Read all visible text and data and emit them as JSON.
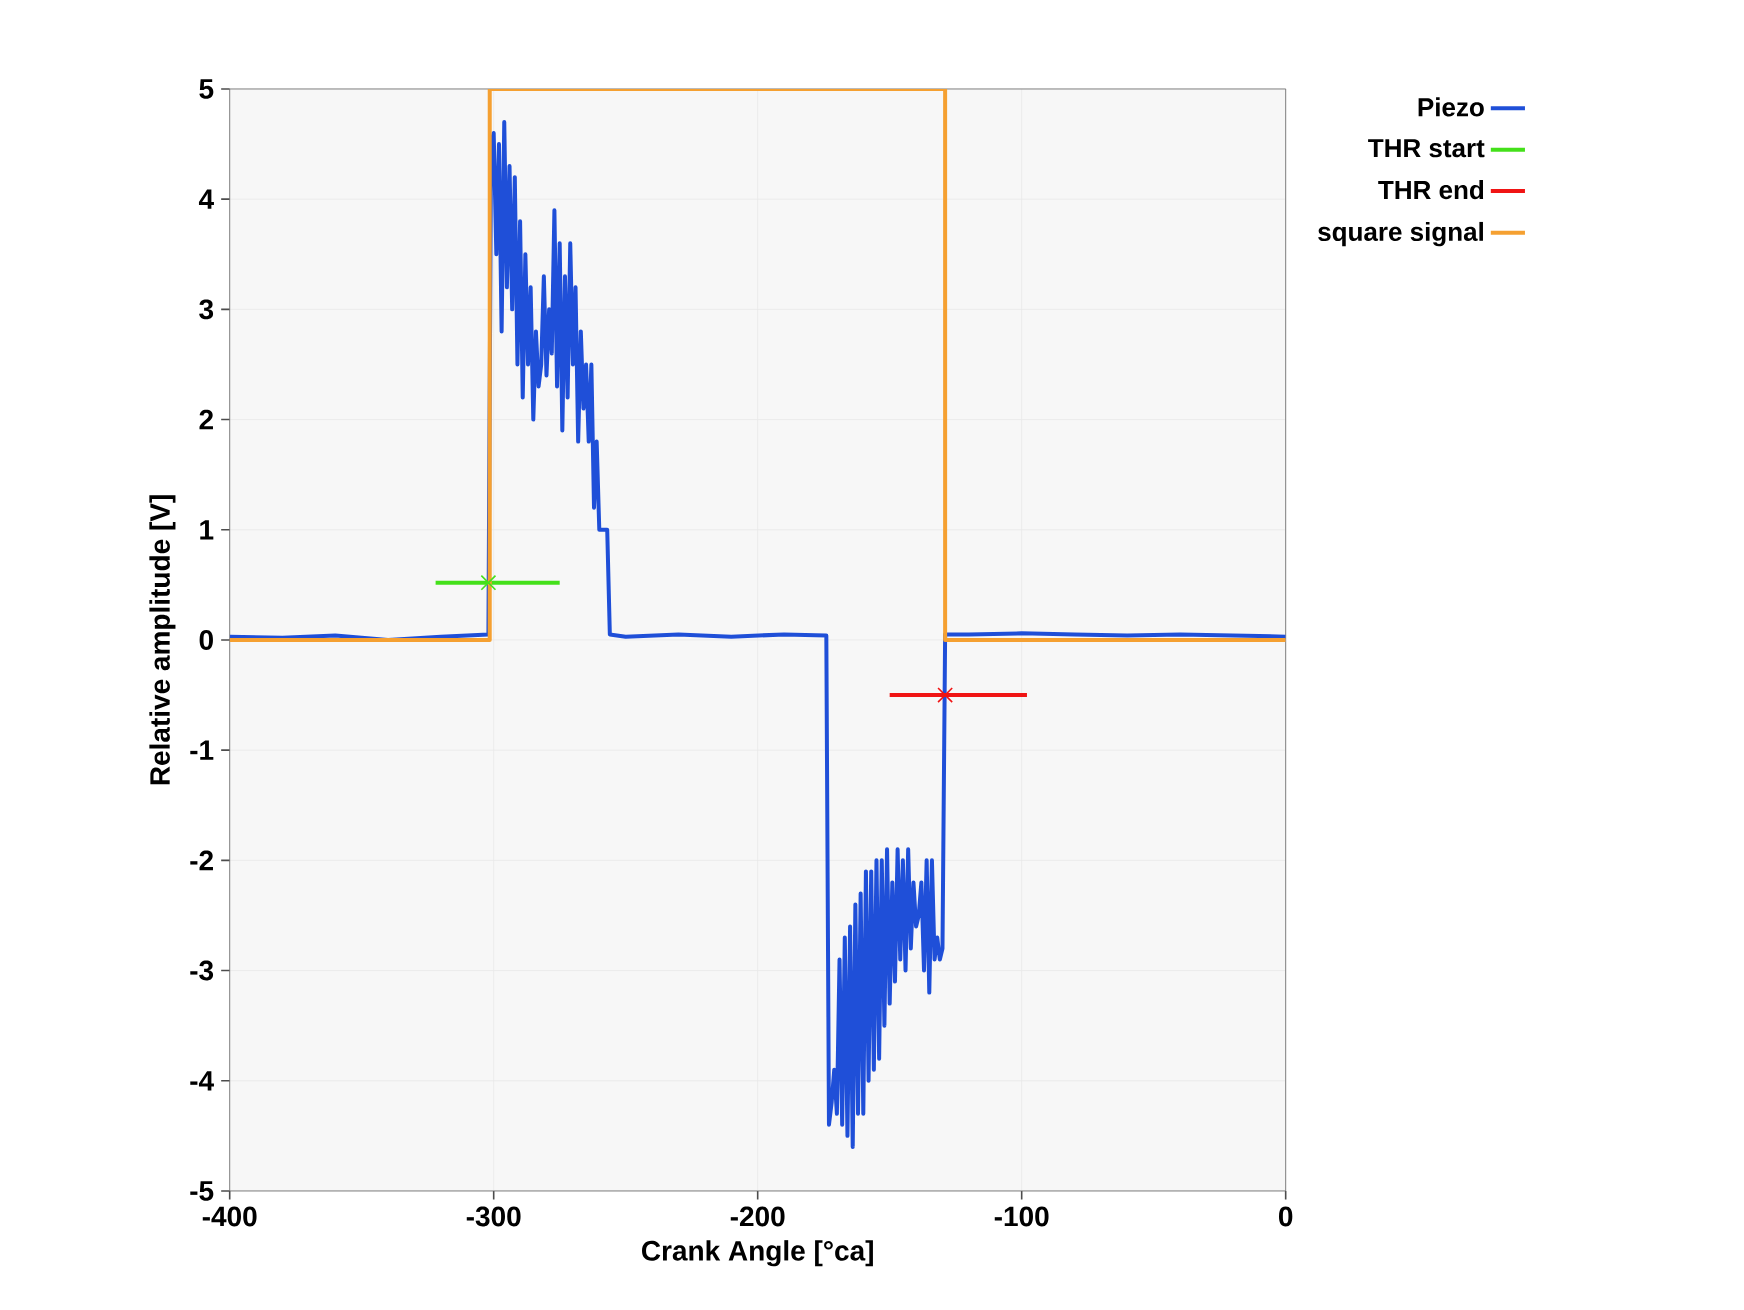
{
  "chart_data": {
    "type": "line",
    "xlabel": "Crank Angle [°ca]",
    "ylabel": "Relative amplitude [V]",
    "xlim": [
      -400,
      0
    ],
    "ylim": [
      -5,
      5
    ],
    "xticks": [
      -400,
      -300,
      -200,
      -100,
      0
    ],
    "yticks": [
      -5,
      -4,
      -3,
      -2,
      -1,
      0,
      1,
      2,
      3,
      4,
      5
    ],
    "grid": true,
    "legend": "top right",
    "marker": "none",
    "line_style": "solid",
    "series": [
      {
        "name": "Piezo",
        "color": "#1f4fd8",
        "x": [
          -400,
          -380,
          -360,
          -340,
          -320,
          -302,
          -301,
          -300,
          -299,
          -298,
          -297,
          -296,
          -295,
          -294,
          -293,
          -292,
          -291,
          -290,
          -289,
          -288,
          -287,
          -286,
          -285,
          -284,
          -283,
          -282,
          -281,
          -280,
          -279,
          -278,
          -277,
          -276,
          -275,
          -274,
          -273,
          -272,
          -271,
          -270,
          -269,
          -268,
          -267,
          -266,
          -265,
          -264,
          -263,
          -262,
          -261,
          -260,
          -257,
          -256,
          -250,
          -230,
          -210,
          -190,
          -174,
          -173,
          -172,
          -171,
          -170,
          -169,
          -168,
          -167,
          -166,
          -165,
          -164,
          -163,
          -162,
          -161,
          -160,
          -159,
          -158,
          -157,
          -156,
          -155,
          -154,
          -153,
          -152,
          -151,
          -150,
          -149,
          -148,
          -147,
          -146,
          -145,
          -144,
          -143,
          -142,
          -141,
          -140,
          -139,
          -138,
          -137,
          -136,
          -135,
          -134,
          -133,
          -132,
          -131,
          -130,
          -129,
          -120,
          -100,
          -80,
          -60,
          -40,
          -20,
          0
        ],
        "values": [
          0.03,
          0.02,
          0.04,
          0.0,
          0.03,
          0.05,
          4.5,
          4.6,
          3.5,
          4.5,
          2.8,
          4.7,
          3.2,
          4.3,
          3.0,
          4.2,
          2.5,
          3.8,
          2.2,
          3.5,
          2.5,
          3.2,
          2.0,
          2.8,
          2.3,
          2.5,
          3.3,
          2.4,
          3.0,
          2.6,
          3.9,
          2.3,
          3.6,
          1.9,
          3.3,
          2.2,
          3.6,
          2.5,
          3.2,
          1.8,
          2.8,
          2.1,
          2.5,
          1.8,
          2.5,
          1.2,
          1.8,
          1.0,
          1.0,
          0.05,
          0.03,
          0.05,
          0.03,
          0.05,
          0.04,
          -4.4,
          -4.2,
          -3.9,
          -4.3,
          -2.9,
          -4.4,
          -2.7,
          -4.5,
          -2.6,
          -4.6,
          -2.4,
          -4.3,
          -2.3,
          -4.3,
          -2.1,
          -4.0,
          -2.1,
          -3.9,
          -2.0,
          -3.8,
          -2.0,
          -3.5,
          -1.9,
          -3.3,
          -2.2,
          -3.1,
          -1.9,
          -2.9,
          -2.0,
          -3.0,
          -1.9,
          -2.8,
          -2.2,
          -2.6,
          -2.5,
          -2.2,
          -3.0,
          -2.0,
          -3.2,
          -2.0,
          -2.9,
          -2.7,
          -2.9,
          -2.8,
          0.05,
          0.05,
          0.06,
          0.05,
          0.04,
          0.05,
          0.04,
          0.03
        ]
      },
      {
        "name": "THR start",
        "color": "#44e01a",
        "x": [
          -322,
          -275
        ],
        "values": [
          0.52,
          0.52
        ]
      },
      {
        "type": "scatter",
        "color": "#44e01a",
        "marker": "cross",
        "x": [
          -302
        ],
        "values": [
          0.52
        ]
      },
      {
        "name": "THR end",
        "color": "#f01414",
        "x": [
          -150,
          -98
        ],
        "values": [
          -0.5,
          -0.5
        ]
      },
      {
        "type": "scatter",
        "color": "#f01414",
        "marker": "cross",
        "x": [
          -129
        ],
        "values": [
          -0.5
        ]
      },
      {
        "name": "square signal",
        "color": "#f5a031",
        "x": [
          -400,
          -301.5,
          -301.5,
          -129,
          -129,
          0
        ],
        "values": [
          0,
          0,
          5,
          5,
          0,
          0
        ]
      }
    ]
  }
}
